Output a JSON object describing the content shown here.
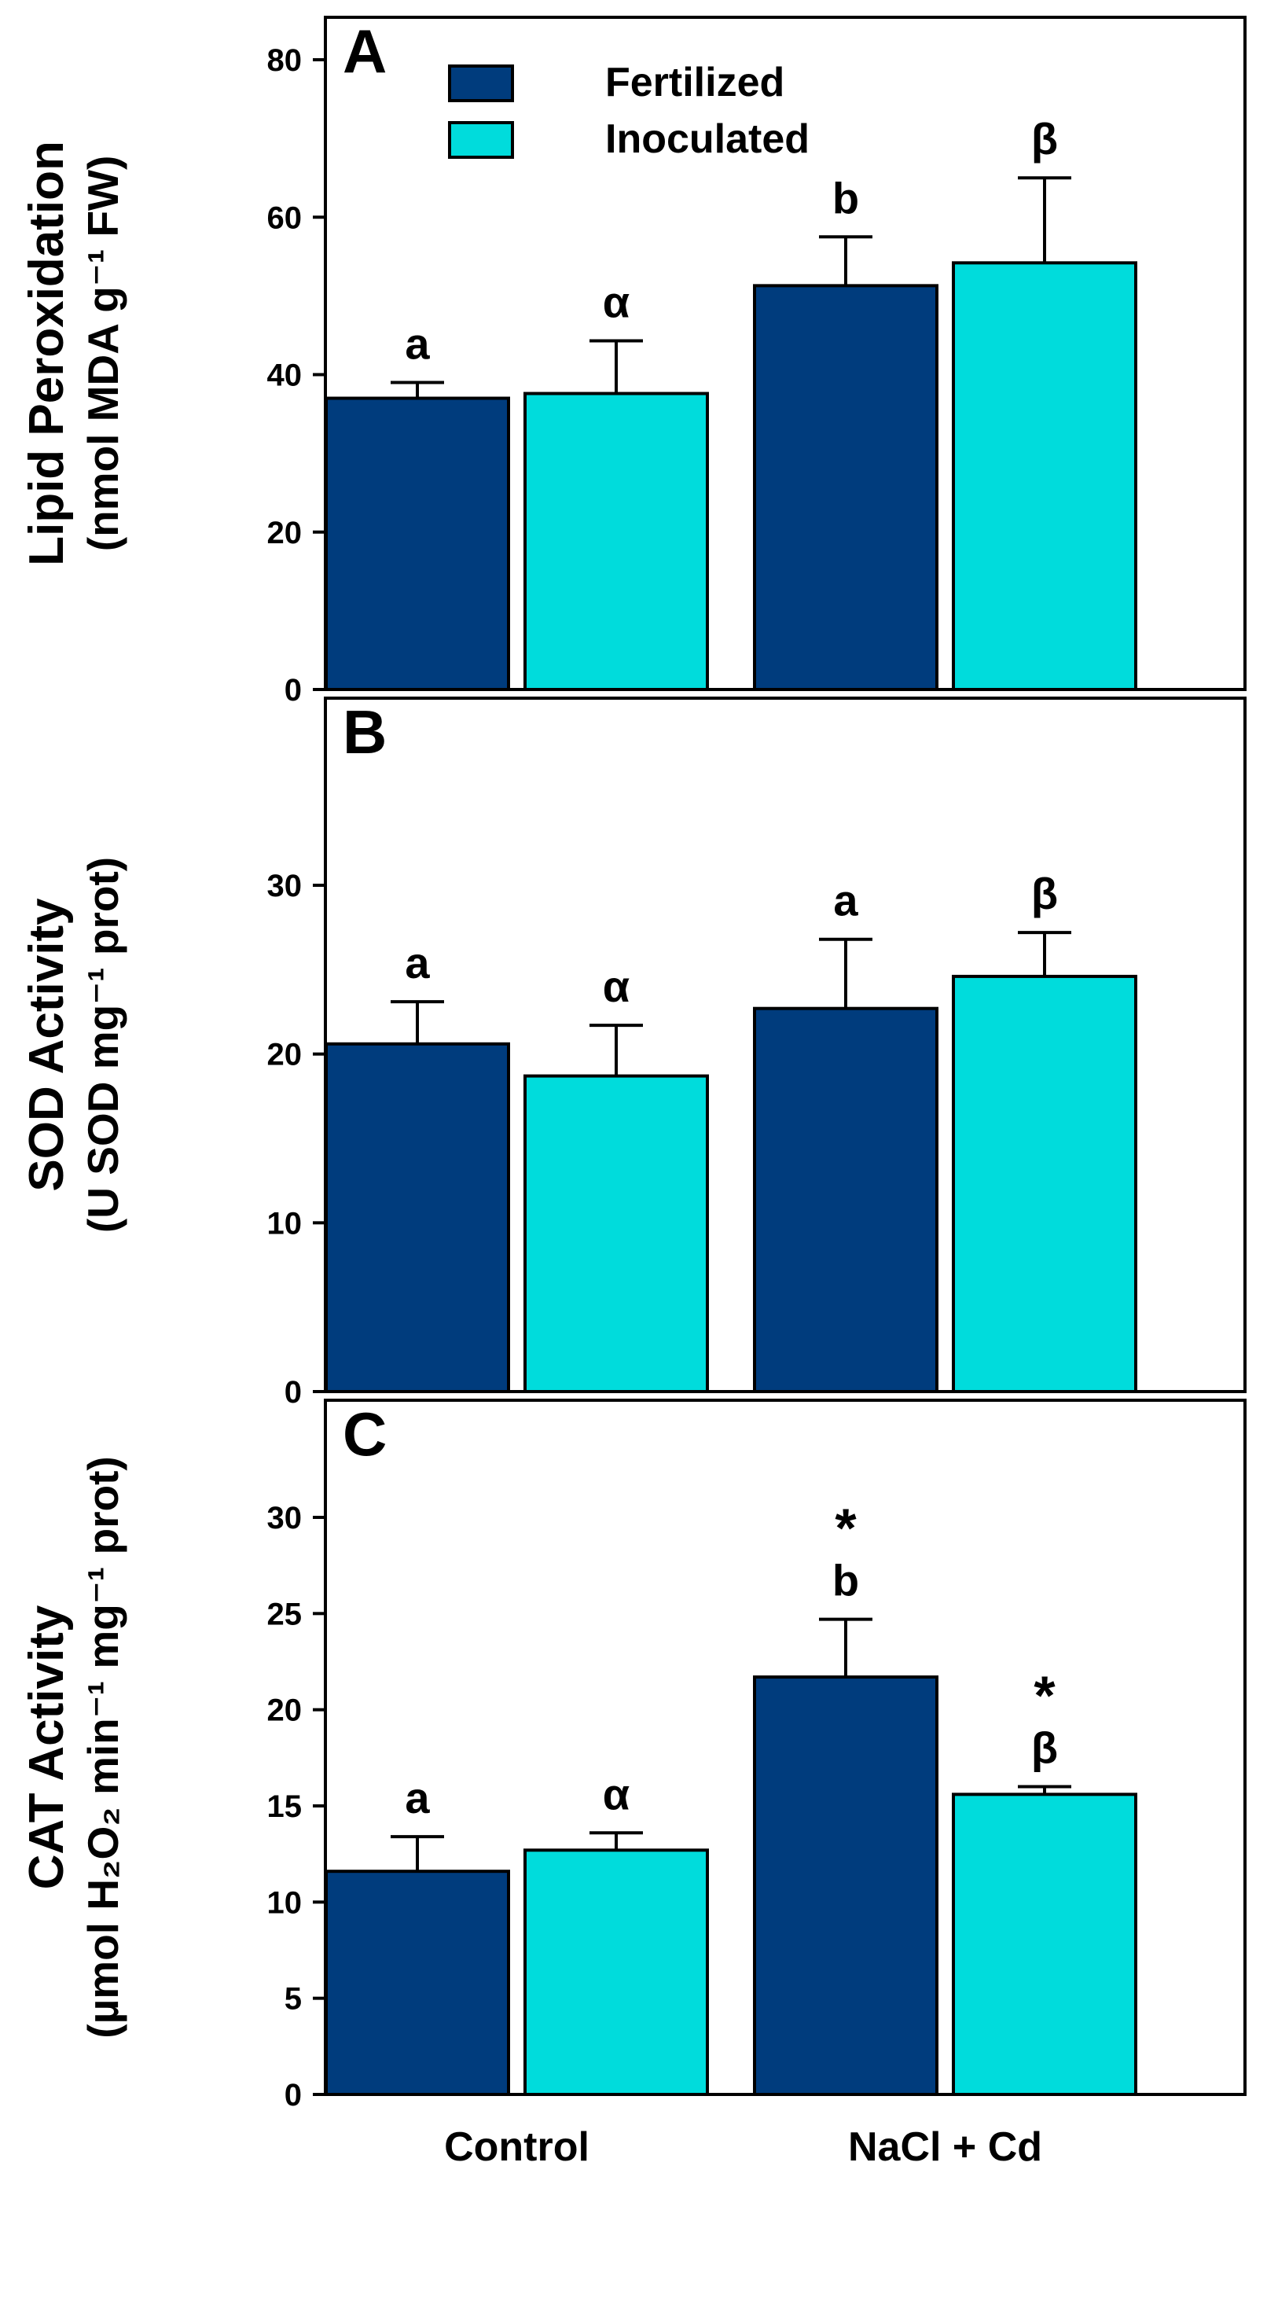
{
  "legend": {
    "entries": [
      {
        "label": "Fertilized",
        "color": "#003c7d"
      },
      {
        "label": "Inoculated",
        "color": "#00dcdc"
      }
    ]
  },
  "x_categories": [
    "Control",
    "NaCl + Cd"
  ],
  "chart_data": [
    {
      "type": "bar",
      "panel_label": "A",
      "ylabel_line1": "Lipid Peroxidation",
      "ylabel_line2": "(nmol MDA g⁻¹ FW)",
      "ylim": [
        0,
        80
      ],
      "yticks": [
        0,
        20,
        40,
        60,
        80
      ],
      "categories": [
        "Control",
        "NaCl + Cd"
      ],
      "series": [
        {
          "name": "Fertilized",
          "color": "#003c7d",
          "values": [
            37.0,
            51.3
          ],
          "errors": [
            2.0,
            6.2
          ],
          "labels": [
            "a",
            "b"
          ]
        },
        {
          "name": "Inoculated",
          "color": "#00dcdc",
          "values": [
            37.6,
            54.2
          ],
          "errors": [
            6.7,
            10.8
          ],
          "labels": [
            "α",
            "β"
          ]
        }
      ]
    },
    {
      "type": "bar",
      "panel_label": "B",
      "ylabel_line1": "SOD Activity",
      "ylabel_line2": "(U SOD mg⁻¹ prot)",
      "ylim": [
        0,
        35
      ],
      "yticks": [
        0,
        10,
        20,
        30
      ],
      "categories": [
        "Control",
        "NaCl + Cd"
      ],
      "series": [
        {
          "name": "Fertilized",
          "color": "#003c7d",
          "values": [
            20.6,
            22.7
          ],
          "errors": [
            2.5,
            4.1
          ],
          "labels": [
            "a",
            "a"
          ]
        },
        {
          "name": "Inoculated",
          "color": "#00dcdc",
          "values": [
            18.7,
            24.6
          ],
          "errors": [
            3.0,
            2.6
          ],
          "labels": [
            "α",
            "β"
          ]
        }
      ]
    },
    {
      "type": "bar",
      "panel_label": "C",
      "ylabel_line1": "CAT Activity",
      "ylabel_line2": "(µmol H₂O₂ min⁻¹ mg⁻¹ prot)",
      "ylim": [
        0,
        32
      ],
      "yticks": [
        0,
        5,
        10,
        15,
        20,
        25,
        30
      ],
      "categories": [
        "Control",
        "NaCl + Cd"
      ],
      "series": [
        {
          "name": "Fertilized",
          "color": "#003c7d",
          "values": [
            11.6,
            21.7
          ],
          "errors": [
            1.8,
            3.0
          ],
          "labels": [
            "a",
            "*\nb"
          ]
        },
        {
          "name": "Inoculated",
          "color": "#00dcdc",
          "values": [
            12.7,
            15.6
          ],
          "errors": [
            0.9,
            0.4
          ],
          "labels": [
            "α",
            "*\nβ"
          ]
        }
      ]
    }
  ]
}
